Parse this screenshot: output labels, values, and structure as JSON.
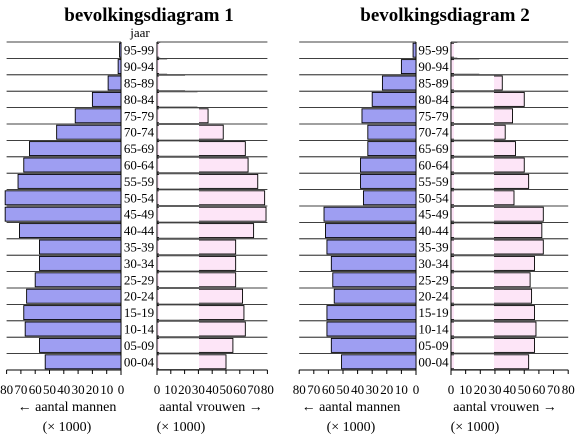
{
  "chart_data": [
    {
      "type": "bar",
      "title": "bevolkingsdiagram 1",
      "age_label": "jaar",
      "categories": [
        "00-04",
        "05-09",
        "10-14",
        "15-19",
        "20-24",
        "25-29",
        "30-34",
        "35-39",
        "40-44",
        "45-49",
        "50-54",
        "55-59",
        "60-64",
        "65-69",
        "70-74",
        "75-79",
        "80-84",
        "85-89",
        "90-94",
        "95-99"
      ],
      "series": [
        {
          "side": "left",
          "values": [
            53,
            57,
            67,
            68,
            66,
            60,
            57,
            57,
            71,
            81,
            81,
            72,
            68,
            64,
            45,
            32,
            20,
            9,
            2,
            1
          ],
          "color": "#9e9ef2"
        },
        {
          "side": "right",
          "values": [
            50,
            55,
            64,
            63,
            62,
            57,
            57,
            57,
            70,
            79,
            78,
            73,
            66,
            64,
            48,
            37,
            29,
            20,
            7,
            2
          ],
          "color": "#fde5f7"
        }
      ],
      "left_axis": {
        "ticks": [
          80,
          70,
          60,
          50,
          40,
          30,
          20,
          10,
          0
        ],
        "tick_labels": [
          "80",
          "70",
          "60",
          "50",
          "40",
          "30",
          "20",
          "10",
          "0"
        ],
        "label": "← aantal mannen",
        "unit": "(× 1000)"
      },
      "right_axis": {
        "ticks": [
          0,
          10,
          20,
          30,
          40,
          50,
          60,
          70,
          80
        ],
        "tick_labels": [
          "0",
          "10",
          "20",
          "30",
          "40",
          "50",
          "60",
          "70",
          "80"
        ],
        "label": "aantal vrouwen →",
        "unit": "(× 1000)"
      },
      "xlim": [
        0,
        80
      ],
      "grid": true
    },
    {
      "type": "bar",
      "title": "bevolkingsdiagram 2",
      "age_label": "",
      "categories": [
        "00-04",
        "05-09",
        "10-14",
        "15-19",
        "20-24",
        "25-29",
        "30-34",
        "35-39",
        "40-44",
        "45-49",
        "50-54",
        "55-59",
        "60-64",
        "65-69",
        "70-74",
        "75-79",
        "80-84",
        "85-89",
        "90-94",
        "95-99"
      ],
      "series": [
        {
          "side": "left",
          "values": [
            51,
            58,
            61,
            61,
            56,
            57,
            58,
            61,
            62,
            63,
            36,
            38,
            38,
            33,
            33,
            37,
            30,
            23,
            10,
            2
          ],
          "color": "#9e9ef2"
        },
        {
          "side": "right",
          "values": [
            53,
            57,
            58,
            57,
            55,
            54,
            57,
            63,
            62,
            63,
            43,
            53,
            50,
            44,
            37,
            42,
            50,
            35,
            19,
            4
          ],
          "color": "#fde5f7"
        }
      ],
      "left_axis": {
        "ticks": [
          80,
          70,
          60,
          50,
          40,
          30,
          20,
          10,
          0
        ],
        "tick_labels": [
          "80",
          "70",
          "60",
          "50",
          "40",
          "30",
          "20",
          "10",
          "0"
        ],
        "label": "← aantal mannen",
        "unit": "(× 1000)"
      },
      "right_axis": {
        "ticks": [
          0,
          10,
          20,
          30,
          40,
          50,
          60,
          70,
          80
        ],
        "tick_labels": [
          "0",
          "10",
          "20",
          "30",
          "40",
          "50",
          "60",
          "70",
          "80"
        ],
        "label": "aantal vrouwen →",
        "unit": "(× 1000)"
      },
      "xlim": [
        0,
        80
      ],
      "grid": true
    }
  ]
}
